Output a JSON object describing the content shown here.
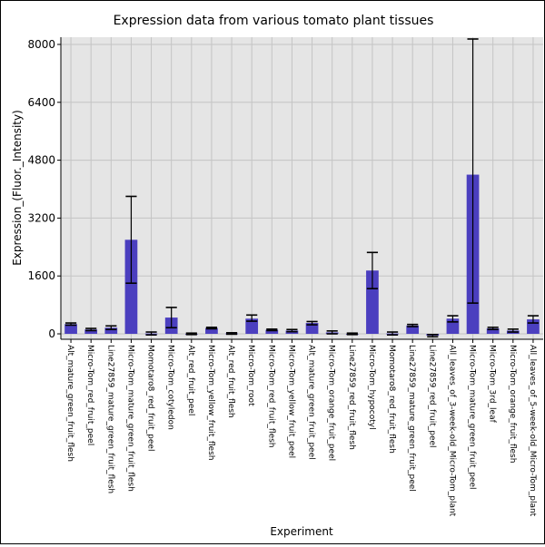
{
  "chart_data": {
    "type": "bar",
    "title": "Expression data from various tomato plant tissues",
    "xlabel": "Experiment",
    "ylabel": "Expression_(Fluor._Intensity)",
    "ylim": [
      -150,
      8200
    ],
    "yticks": [
      0,
      1600,
      3200,
      4800,
      6400,
      8000
    ],
    "ytick_labels": [
      "0",
      "1600",
      "3200",
      "4800",
      "6400",
      "8000"
    ],
    "grid": true,
    "bar_color": "#4b3fbf",
    "background_color": "#e5e5e5",
    "categories": [
      "Alt_mature_green_fruit_flesh",
      "Micro-Tom_red_fruit_peel",
      "Line27859_mature_green_fruit_flesh",
      "Micro-Tom_mature_green_fruit_flesh",
      "Momotaro8_red_fruit_peel",
      "Micro-Tom_cotyledon",
      "Alt_red_fruit_peel",
      "Micro-Tom_yellow_fruit_flesh",
      "Alt_red_fruit_flesh",
      "Micro-Tom_root",
      "Micro-Tom_red_fruit_flesh",
      "Micro-Tom_yellow_fruit_peel",
      "Alt_mature_green_fruit_peel",
      "Micro-Tom_orange_fruit_peel",
      "Line27859_red_fruit_flesh",
      "Micro-Tom_hypocotyl",
      "Momotaro8_red_fruit_flesh",
      "Line27859_mature_green_fruit_peel",
      "Line27859_red_fruit_peel",
      "All_leaves_of_3-week-old_Micro-Tom_plant",
      "Micro-Tom_mature_green_fruit_peel",
      "Micro-Tom_3rd_leaf",
      "Micro-Tom_orange_fruit_flesh",
      "All_leaves_of_5-week-old_Micro-Tom_plant"
    ],
    "values": [
      270,
      120,
      170,
      2600,
      10,
      450,
      0,
      160,
      10,
      420,
      110,
      90,
      300,
      40,
      0,
      1750,
      10,
      230,
      -50,
      420,
      4400,
      150,
      90,
      400
    ],
    "error_low": [
      240,
      90,
      120,
      1400,
      -30,
      170,
      -20,
      140,
      -10,
      350,
      90,
      60,
      250,
      0,
      -20,
      1250,
      -30,
      200,
      -80,
      330,
      850,
      120,
      50,
      300
    ],
    "error_high": [
      300,
      150,
      220,
      3800,
      50,
      730,
      20,
      180,
      30,
      520,
      130,
      120,
      340,
      80,
      20,
      2250,
      50,
      260,
      -20,
      500,
      8150,
      180,
      130,
      500
    ]
  }
}
